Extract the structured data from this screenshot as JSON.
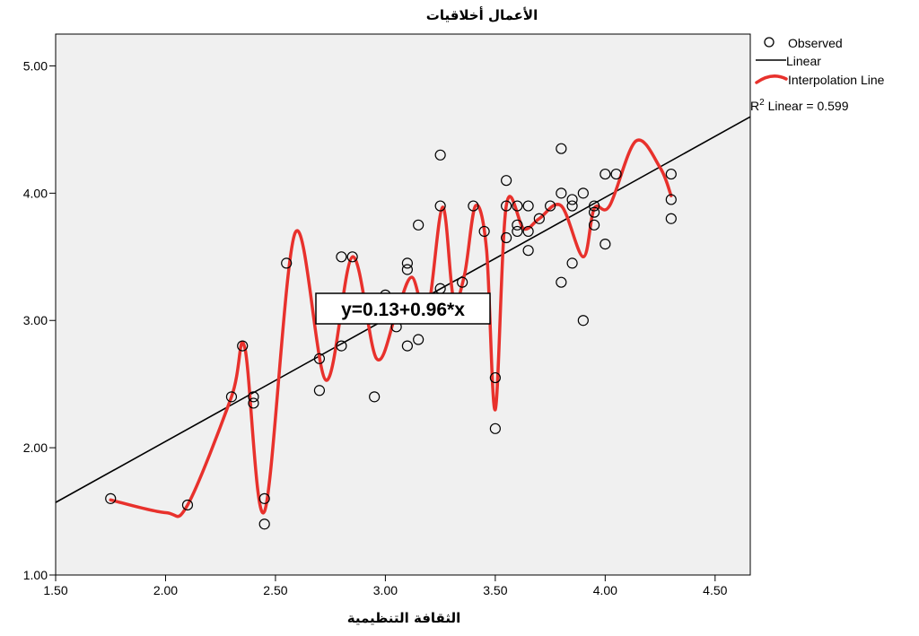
{
  "chart_data": {
    "type": "scatter",
    "title": "الأعمال أخلاقيات",
    "xlabel": "الثقافة التنظيمية",
    "ylabel": "",
    "xlim": [
      1.5,
      4.66
    ],
    "ylim": [
      1.0,
      5.25
    ],
    "x_ticks": [
      "1.50",
      "2.00",
      "2.50",
      "3.00",
      "3.50",
      "4.00",
      "4.50"
    ],
    "y_ticks": [
      "1.00",
      "2.00",
      "3.00",
      "4.00",
      "5.00"
    ],
    "grid": false,
    "background": "#f0f0f0",
    "legend_position": "right",
    "legend": {
      "observed": "Observed",
      "linear": "Linear",
      "interpolation": "Interpolation Line",
      "r2_prefix": "R",
      "r2_sup": "2",
      "r2_rest": " Linear = 0.599"
    },
    "equation_label": "y=0.13+0.96*x",
    "regression": {
      "intercept": 0.13,
      "slope": 0.96
    },
    "colors": {
      "observed": "#000000",
      "linear": "#000000",
      "interpolation": "#e8312c"
    },
    "series": [
      {
        "name": "Observed",
        "type": "scatter",
        "points": [
          [
            1.75,
            1.6
          ],
          [
            2.1,
            1.55
          ],
          [
            2.3,
            2.4
          ],
          [
            2.35,
            2.8
          ],
          [
            2.4,
            2.4
          ],
          [
            2.4,
            2.35
          ],
          [
            2.45,
            1.6
          ],
          [
            2.45,
            1.4
          ],
          [
            2.55,
            3.45
          ],
          [
            2.7,
            2.45
          ],
          [
            2.7,
            2.7
          ],
          [
            2.8,
            3.5
          ],
          [
            2.8,
            2.8
          ],
          [
            2.85,
            3.5
          ],
          [
            2.95,
            2.4
          ],
          [
            3.0,
            3.2
          ],
          [
            3.05,
            2.95
          ],
          [
            3.1,
            3.45
          ],
          [
            3.1,
            3.4
          ],
          [
            3.1,
            2.8
          ],
          [
            3.15,
            3.75
          ],
          [
            3.15,
            2.85
          ],
          [
            3.25,
            4.3
          ],
          [
            3.25,
            3.9
          ],
          [
            3.25,
            3.25
          ],
          [
            3.35,
            3.3
          ],
          [
            3.4,
            3.9
          ],
          [
            3.45,
            3.7
          ],
          [
            3.5,
            2.55
          ],
          [
            3.5,
            2.15
          ],
          [
            3.55,
            4.1
          ],
          [
            3.55,
            3.9
          ],
          [
            3.55,
            3.65
          ],
          [
            3.6,
            3.9
          ],
          [
            3.6,
            3.75
          ],
          [
            3.6,
            3.7
          ],
          [
            3.65,
            3.9
          ],
          [
            3.65,
            3.7
          ],
          [
            3.65,
            3.55
          ],
          [
            3.7,
            3.8
          ],
          [
            3.75,
            3.9
          ],
          [
            3.8,
            4.35
          ],
          [
            3.8,
            4.0
          ],
          [
            3.8,
            3.3
          ],
          [
            3.85,
            3.95
          ],
          [
            3.85,
            3.9
          ],
          [
            3.85,
            3.45
          ],
          [
            3.9,
            4.0
          ],
          [
            3.9,
            3.0
          ],
          [
            3.95,
            3.9
          ],
          [
            3.95,
            3.85
          ],
          [
            3.95,
            3.75
          ],
          [
            4.0,
            4.15
          ],
          [
            4.0,
            3.6
          ],
          [
            4.05,
            4.15
          ],
          [
            4.3,
            4.15
          ],
          [
            4.3,
            3.95
          ],
          [
            4.3,
            3.8
          ]
        ]
      },
      {
        "name": "Linear",
        "type": "line",
        "points": [
          [
            1.5,
            1.57
          ],
          [
            4.66,
            4.6
          ]
        ]
      },
      {
        "name": "Interpolation Line",
        "type": "line",
        "points": [
          [
            1.75,
            1.59
          ],
          [
            2.0,
            1.49
          ],
          [
            2.1,
            1.55
          ],
          [
            2.3,
            2.4
          ],
          [
            2.36,
            2.79
          ],
          [
            2.45,
            1.5
          ],
          [
            2.59,
            3.69
          ],
          [
            2.73,
            2.53
          ],
          [
            2.85,
            3.5
          ],
          [
            2.96,
            2.7
          ],
          [
            3.05,
            3.06
          ],
          [
            3.12,
            3.34
          ],
          [
            3.19,
            3.06
          ],
          [
            3.26,
            3.89
          ],
          [
            3.31,
            3.17
          ],
          [
            3.36,
            3.36
          ],
          [
            3.41,
            3.9
          ],
          [
            3.46,
            3.56
          ],
          [
            3.5,
            2.3
          ],
          [
            3.55,
            3.9
          ],
          [
            3.63,
            3.72
          ],
          [
            3.7,
            3.8
          ],
          [
            3.8,
            3.9
          ],
          [
            3.9,
            3.5
          ],
          [
            3.95,
            3.88
          ],
          [
            4.02,
            3.9
          ],
          [
            4.14,
            4.41
          ],
          [
            4.25,
            4.2
          ],
          [
            4.3,
            3.98
          ]
        ]
      }
    ]
  }
}
